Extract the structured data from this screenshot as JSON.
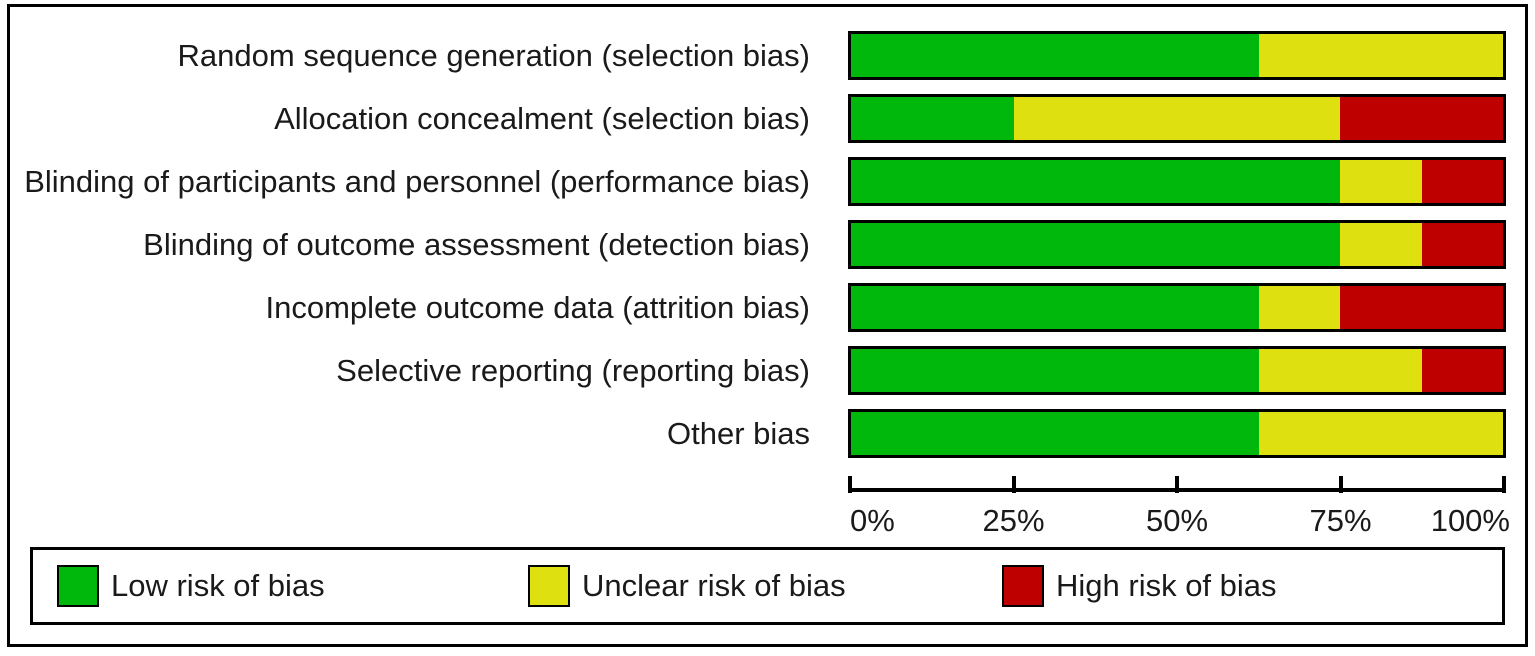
{
  "chart_data": {
    "type": "bar",
    "variant": "horizontal-stacked",
    "categories": [
      "Random sequence generation (selection bias)",
      "Allocation concealment (selection bias)",
      "Blinding of participants and personnel (performance bias)",
      "Blinding of outcome assessment (detection bias)",
      "Incomplete outcome data (attrition bias)",
      "Selective reporting (reporting bias)",
      "Other bias"
    ],
    "series": [
      {
        "name": "Low risk of bias",
        "color": "#00b70c",
        "values": [
          62.5,
          25,
          75,
          75,
          62.5,
          62.5,
          62.5
        ]
      },
      {
        "name": "Unclear risk of bias",
        "color": "#dee010",
        "values": [
          37.5,
          50,
          12.5,
          12.5,
          12.5,
          25,
          37.5
        ]
      },
      {
        "name": "High risk of bias",
        "color": "#bf0000",
        "values": [
          0,
          25,
          12.5,
          12.5,
          25,
          12.5,
          0
        ]
      }
    ],
    "x_tick_labels": [
      "0%",
      "25%",
      "50%",
      "75%",
      "100%"
    ],
    "xlim": [
      0,
      100
    ],
    "unit": "percent",
    "grid": false,
    "legend_position": "bottom"
  },
  "colors": {
    "low_risk": "#00b70c",
    "unclear_risk": "#dee010",
    "high_risk": "#bf0000",
    "border": "#000000",
    "background": "#ffffff"
  }
}
